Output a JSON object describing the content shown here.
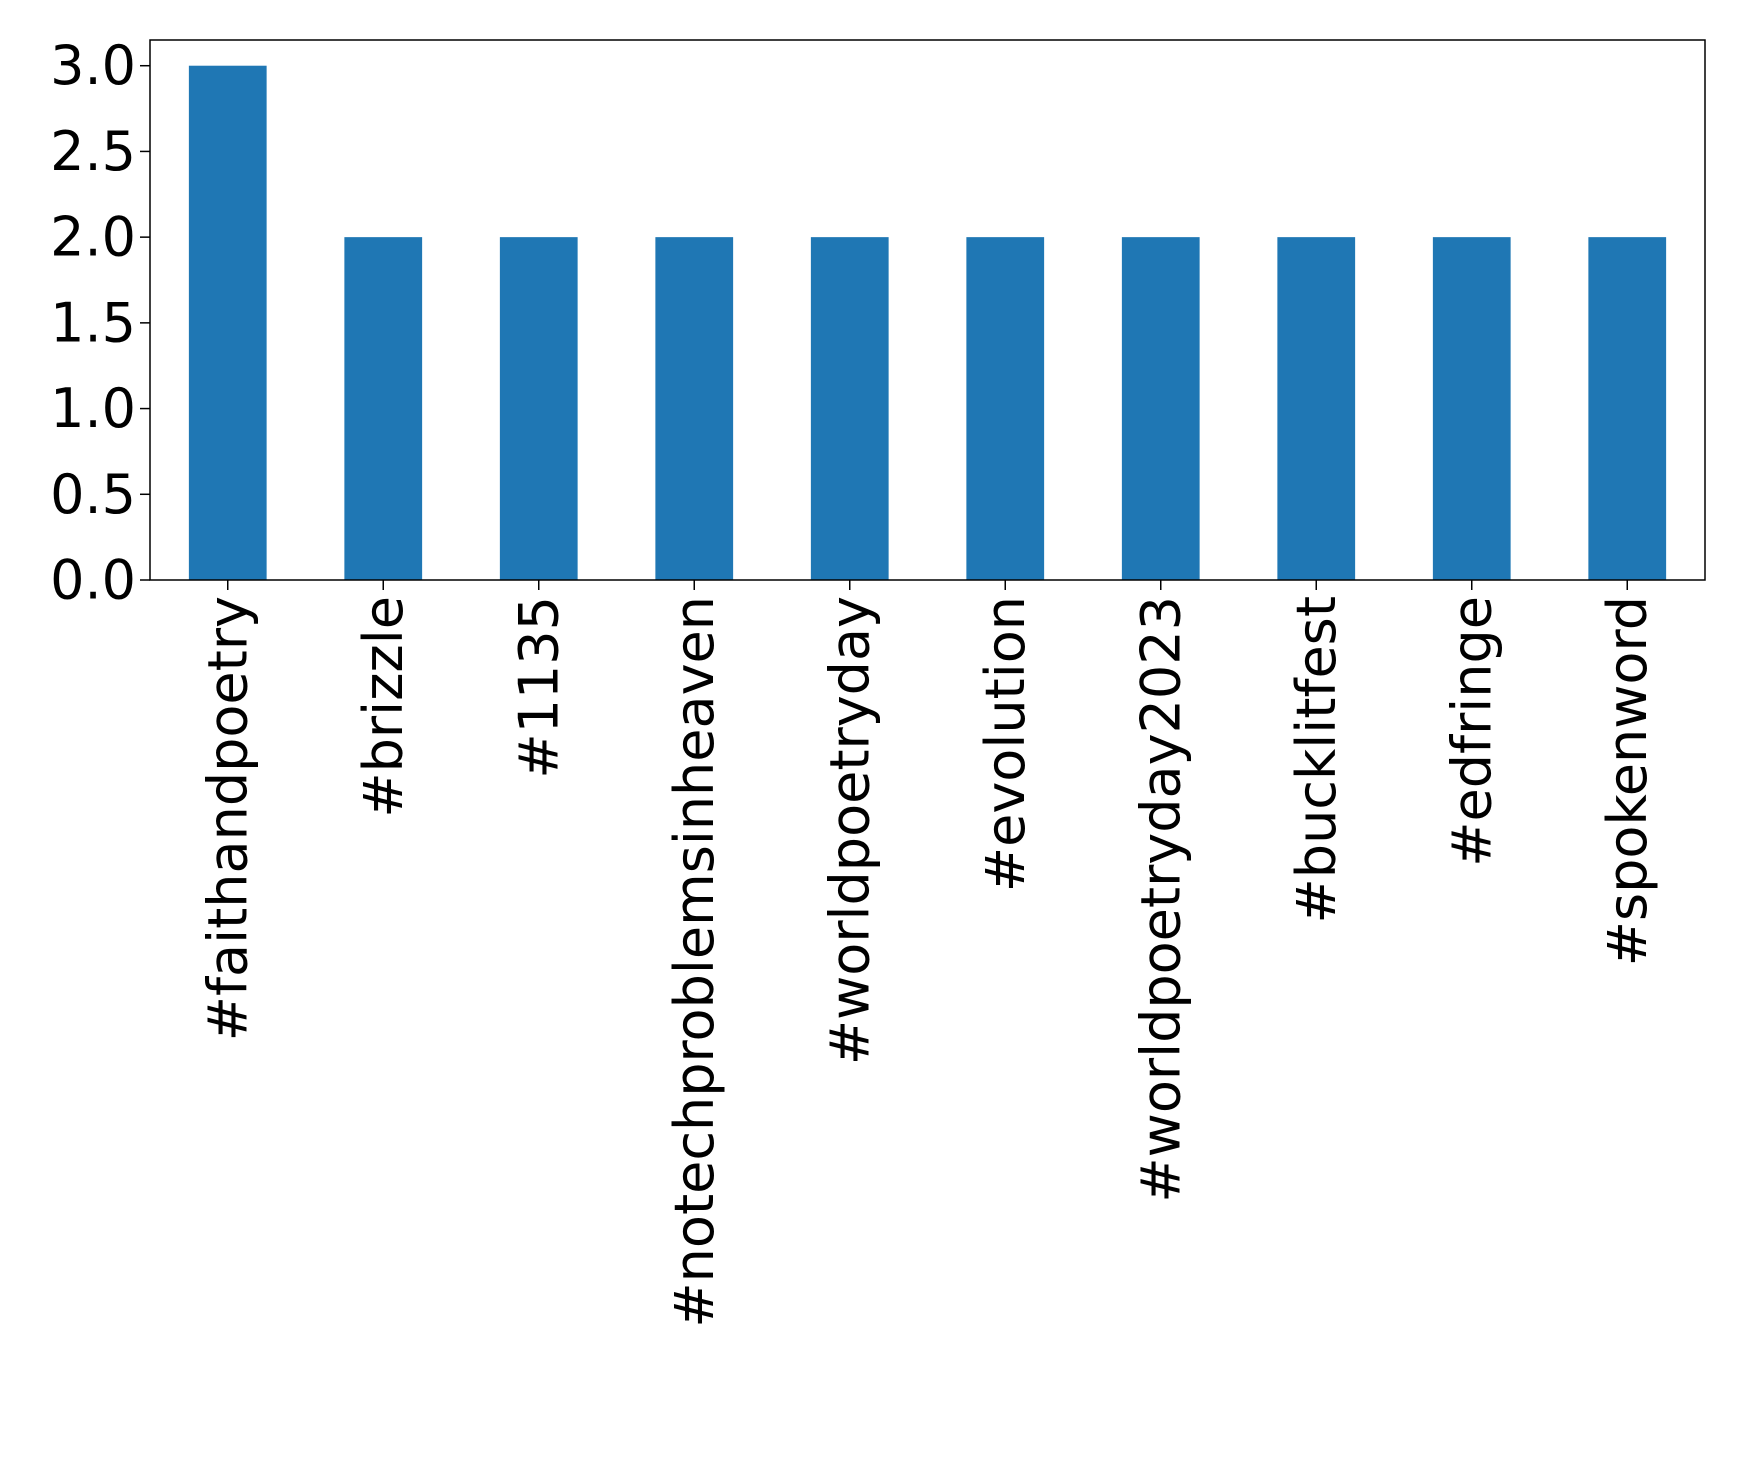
{
  "chart_data": {
    "type": "bar",
    "title": "",
    "xlabel": "",
    "ylabel": "",
    "categories": [
      "#faithandpoetry",
      "#brizzle",
      "#1135",
      "#notechproblemsinheaven",
      "#worldpoetryday",
      "#evolution",
      "#worldpoetryday2023",
      "#bucklitfest",
      "#edfringe",
      "#spokenword"
    ],
    "values": [
      3,
      2,
      2,
      2,
      2,
      2,
      2,
      2,
      2,
      2
    ],
    "ylim": [
      0,
      3.15
    ],
    "yticks": [
      "0.0",
      "0.5",
      "1.0",
      "1.5",
      "2.0",
      "2.5",
      "3.0"
    ],
    "ytick_values": [
      0,
      0.5,
      1.0,
      1.5,
      2.0,
      2.5,
      3.0
    ],
    "bar_color": "#1f77b4",
    "grid": false,
    "legend": "none"
  }
}
